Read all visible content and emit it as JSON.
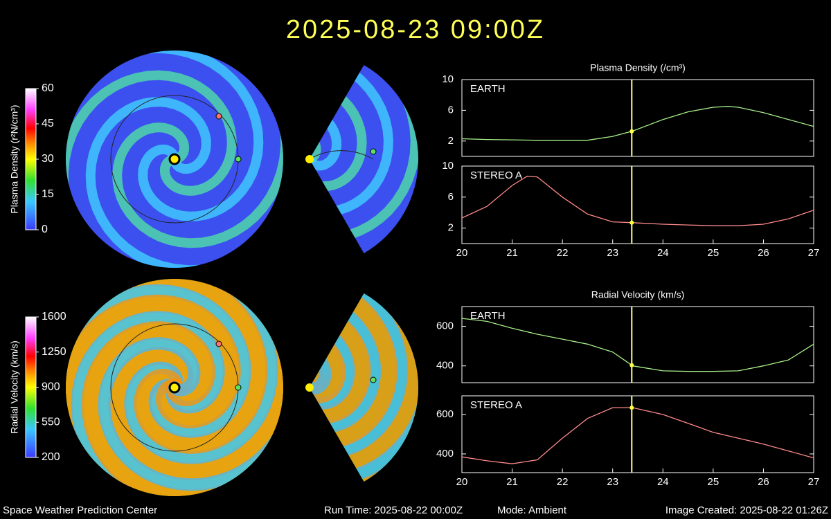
{
  "title": "2025-08-23 09:00Z",
  "footer": {
    "left": "Space Weather Prediction Center",
    "run": "Run Time: 2025-08-22 00:00Z",
    "mode": "Mode: Ambient",
    "created": "Image Created: 2025-08-22 01:26Z"
  },
  "chart_data": [
    {
      "type": "colorbar",
      "ylabel": "Plasma Density (r²N/cm³)",
      "ylim": [
        0,
        60
      ],
      "yticks": [
        0,
        15,
        30,
        45,
        60
      ]
    },
    {
      "type": "colorbar",
      "ylabel": "Radial Velocity (km/s)",
      "ylim": [
        200,
        1600
      ],
      "yticks": [
        200,
        550,
        900,
        1250,
        1600
      ]
    },
    {
      "type": "line",
      "title": "Plasma Density (/cm³)",
      "label": "EARTH",
      "color": "#a8f08a",
      "x": [
        20,
        20.5,
        21,
        21.5,
        22,
        22.5,
        23,
        23.4,
        24,
        24.5,
        25,
        25.3,
        25.5,
        26,
        26.5,
        27
      ],
      "values": [
        2.3,
        2.2,
        2.15,
        2.1,
        2.1,
        2.1,
        2.6,
        3.3,
        4.8,
        5.8,
        6.4,
        6.5,
        6.4,
        5.7,
        4.8,
        3.9
      ],
      "xlim": [
        20,
        27
      ],
      "ylim": [
        0,
        10
      ],
      "yticks": [
        2,
        6,
        10
      ],
      "marker_x": 23.38
    },
    {
      "type": "line",
      "label": "STEREO A",
      "color": "#ff8a8a",
      "x": [
        20,
        20.5,
        21,
        21.3,
        21.5,
        22,
        22.5,
        23,
        23.4,
        24,
        24.5,
        25,
        25.5,
        26,
        26.5,
        27
      ],
      "values": [
        3.3,
        4.8,
        7.5,
        8.7,
        8.6,
        6,
        3.8,
        2.8,
        2.7,
        2.5,
        2.4,
        2.3,
        2.3,
        2.5,
        3.2,
        4.3
      ],
      "xlim": [
        20,
        27
      ],
      "ylim": [
        0,
        10
      ],
      "yticks": [
        2,
        6,
        10
      ],
      "xticks": [
        20,
        21,
        22,
        23,
        24,
        25,
        26,
        27
      ],
      "marker_x": 23.38
    },
    {
      "type": "line",
      "title": "Radial Velocity (km/s)",
      "label": "EARTH",
      "color": "#a8f08a",
      "x": [
        20,
        20.5,
        21,
        21.5,
        22,
        22.5,
        23,
        23.4,
        24,
        24.5,
        25,
        25.5,
        26,
        26.5,
        27
      ],
      "values": [
        640,
        625,
        590,
        560,
        535,
        510,
        470,
        400,
        375,
        372,
        372,
        375,
        400,
        430,
        510
      ],
      "xlim": [
        20,
        27
      ],
      "ylim": [
        315,
        700
      ],
      "yticks": [
        400,
        600
      ],
      "marker_x": 23.38
    },
    {
      "type": "line",
      "label": "STEREO A",
      "color": "#ff8a8a",
      "x": [
        20,
        20.5,
        21,
        21.5,
        22,
        22.5,
        23,
        23.4,
        24,
        24.5,
        25,
        25.5,
        26,
        26.5,
        27
      ],
      "values": [
        385,
        365,
        350,
        370,
        480,
        580,
        635,
        635,
        600,
        555,
        510,
        480,
        450,
        415,
        380
      ],
      "xlim": [
        20,
        27
      ],
      "ylim": [
        305,
        695
      ],
      "yticks": [
        400,
        600
      ],
      "xticks": [
        20,
        21,
        22,
        23,
        24,
        25,
        26,
        27
      ],
      "marker_x": 23.38
    }
  ]
}
